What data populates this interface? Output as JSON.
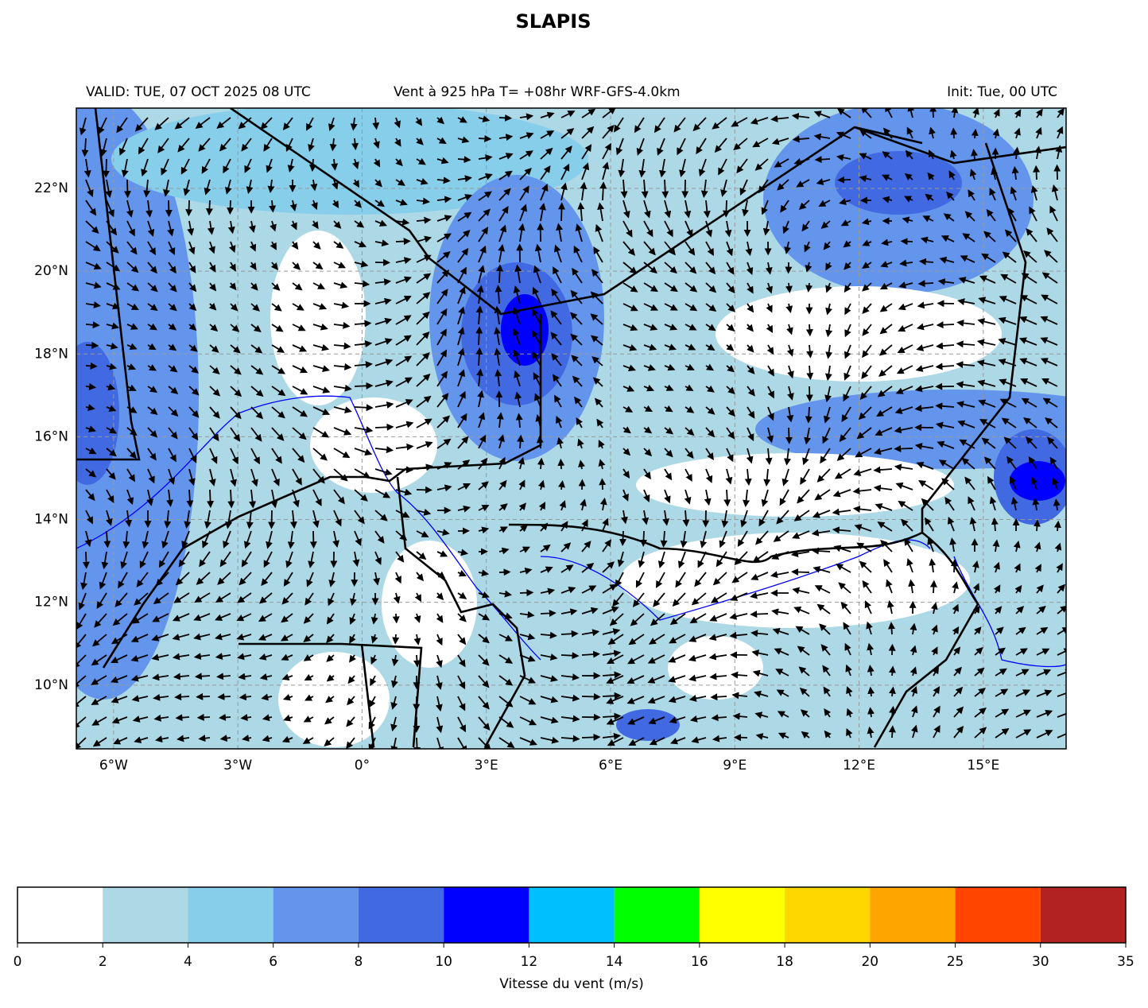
{
  "header": {
    "title": "SLAPIS",
    "left": "VALID: TUE, 07 OCT 2025 08 UTC",
    "center": "Vent à 925 hPa T= +08hr  WRF-GFS-4.0km",
    "right": "Init: Tue, 00 UTC"
  },
  "map": {
    "xlim": [
      -6.9,
      17.0
    ],
    "ylim": [
      8.46,
      23.94
    ],
    "xticks": [
      {
        "value": -6,
        "label": "6°W"
      },
      {
        "value": -3,
        "label": "3°W"
      },
      {
        "value": 0,
        "label": "0°"
      },
      {
        "value": 3,
        "label": "3°E"
      },
      {
        "value": 6,
        "label": "6°E"
      },
      {
        "value": 9,
        "label": "9°E"
      },
      {
        "value": 12,
        "label": "12°E"
      },
      {
        "value": 15,
        "label": "15°E"
      }
    ],
    "yticks": [
      {
        "value": 10,
        "label": "10°N"
      },
      {
        "value": 12,
        "label": "12°N"
      },
      {
        "value": 14,
        "label": "14°N"
      },
      {
        "value": 16,
        "label": "16°N"
      },
      {
        "value": 18,
        "label": "18°N"
      },
      {
        "value": 20,
        "label": "20°N"
      },
      {
        "value": 22,
        "label": "22°N"
      }
    ]
  },
  "colorbar": {
    "bounds": [
      0,
      2,
      4,
      6,
      8,
      10,
      12,
      14,
      16,
      18,
      20,
      25,
      30,
      35
    ],
    "colors": [
      "#ffffff",
      "#add8e6",
      "#87ceeb",
      "#6495ed",
      "#4169e1",
      "#0000ff",
      "#00bfff",
      "#00ff00",
      "#ffff00",
      "#ffd700",
      "#ffa500",
      "#ff4500",
      "#b22222"
    ],
    "label": "Vitesse du vent (m/s)"
  }
}
